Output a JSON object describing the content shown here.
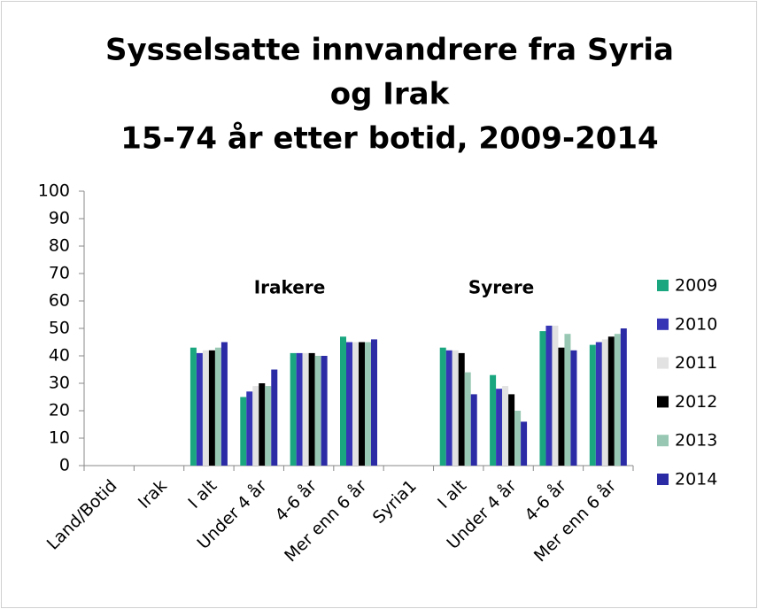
{
  "chart_data": {
    "type": "bar",
    "title": [
      "Sysselsatte innvandrere fra Syria",
      "og Irak",
      "15-74 år etter botid, 2009-2014"
    ],
    "annotations": [
      "Irakere",
      "Syrere"
    ],
    "categories": [
      "Land/Botid",
      "Irak",
      "I alt",
      "Under 4 år",
      "4-6 år",
      "Mer enn 6 år",
      "Syria1",
      "I alt",
      "Under 4 år",
      "4-6 år",
      "Mer enn 6 år"
    ],
    "series": [
      {
        "name": "2009",
        "color": "#1aa780",
        "values": [
          null,
          null,
          43,
          25,
          41,
          47,
          null,
          43,
          33,
          49,
          44
        ]
      },
      {
        "name": "2010",
        "color": "#3535b5",
        "values": [
          null,
          null,
          41,
          27,
          41,
          45,
          null,
          42,
          28,
          51,
          45
        ]
      },
      {
        "name": "2011",
        "color": "#e2e2e2",
        "values": [
          null,
          null,
          42,
          29,
          41,
          45,
          null,
          42,
          29,
          51,
          46
        ]
      },
      {
        "name": "2012",
        "color": "#000000",
        "values": [
          null,
          null,
          42,
          30,
          41,
          45,
          null,
          41,
          26,
          43,
          47
        ]
      },
      {
        "name": "2013",
        "color": "#98c8b3",
        "values": [
          null,
          null,
          43,
          29,
          40,
          45,
          null,
          34,
          20,
          48,
          48
        ]
      },
      {
        "name": "2014",
        "color": "#2b2ba6",
        "values": [
          null,
          null,
          45,
          35,
          40,
          46,
          null,
          26,
          16,
          42,
          50
        ]
      }
    ],
    "ylim": [
      0,
      100
    ],
    "yticks": [
      0,
      10,
      20,
      30,
      40,
      50,
      60,
      70,
      80,
      90,
      100
    ],
    "legend": "right"
  }
}
